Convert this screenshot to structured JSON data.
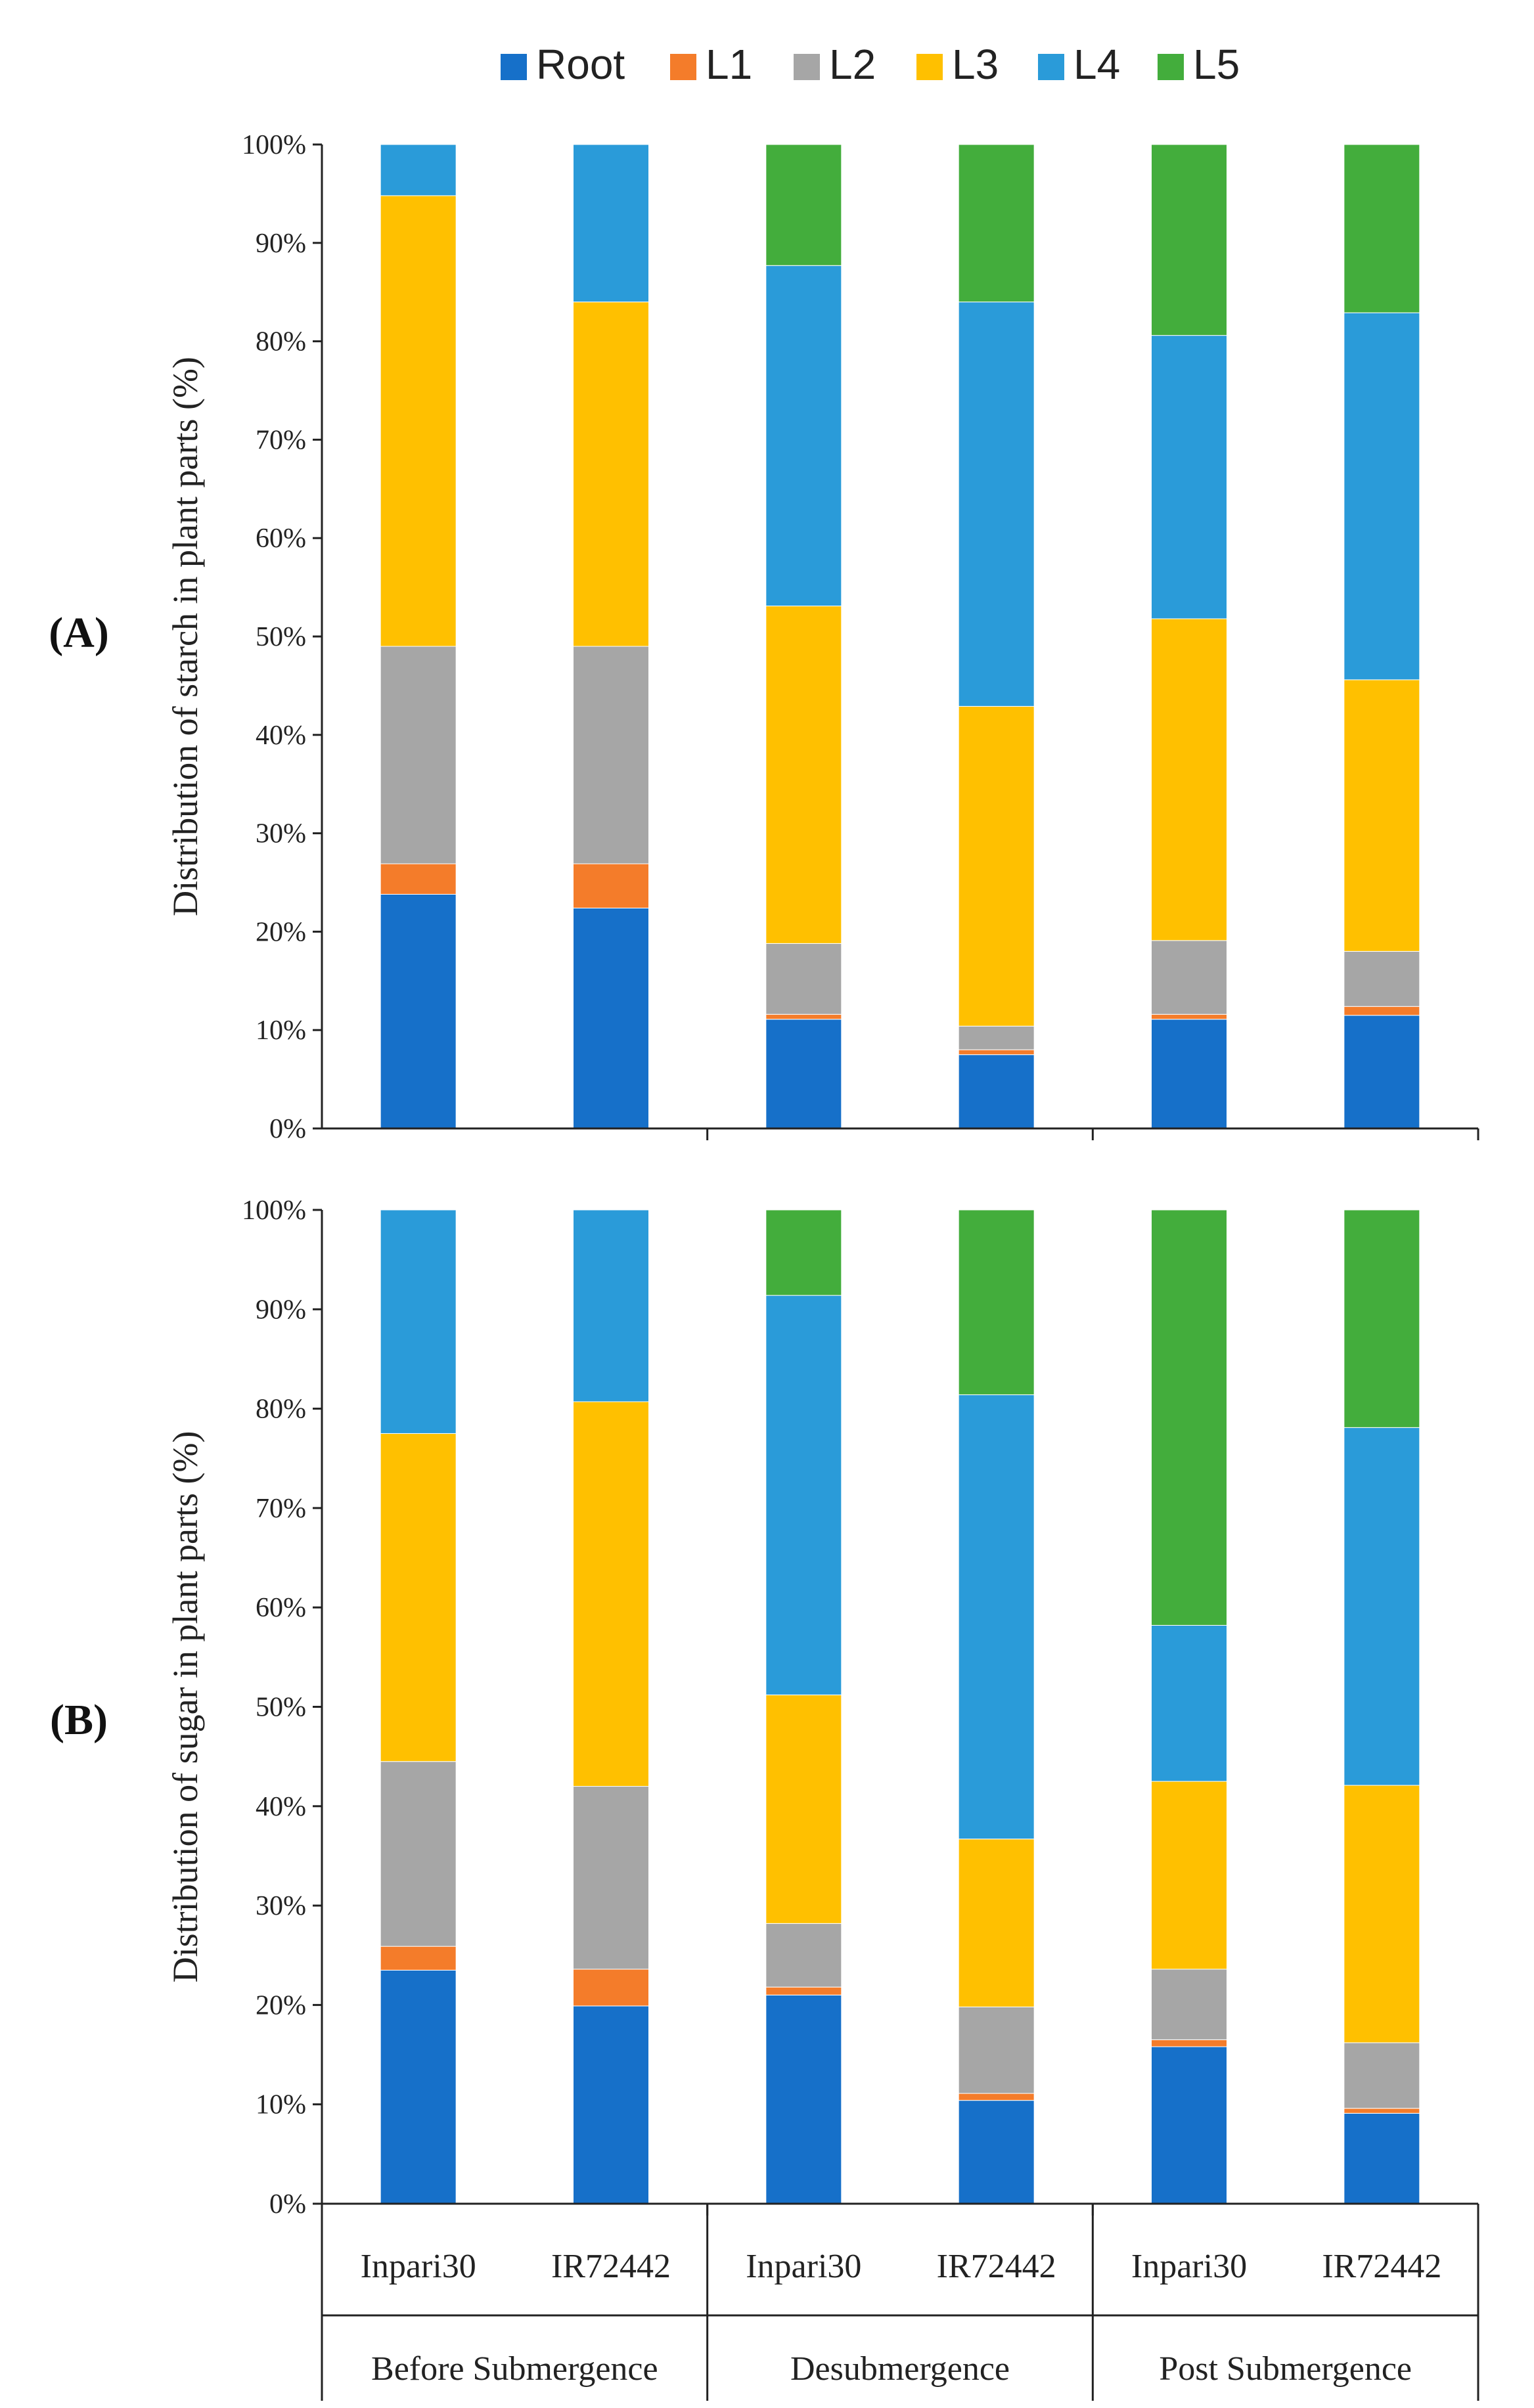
{
  "legend": [
    {
      "name": "Root",
      "color": "#1670c9"
    },
    {
      "name": "L1",
      "color": "#f47c2a"
    },
    {
      "name": "L2",
      "color": "#a6a6a6"
    },
    {
      "name": "L3",
      "color": "#ffc000"
    },
    {
      "name": "L4",
      "color": "#2a9bd9"
    },
    {
      "name": "L5",
      "color": "#43ad3c"
    }
  ],
  "groups": [
    "Before Submergence",
    "Desubmergence",
    "Post Submergence"
  ],
  "chart_data": [
    {
      "type": "bar",
      "stacked": true,
      "panel_label": "(A)",
      "ylabel": "Distribution of starch in plant parts (%)",
      "ylim": [
        0,
        100
      ],
      "yticks": [
        "0%",
        "10%",
        "20%",
        "30%",
        "40%",
        "50%",
        "60%",
        "70%",
        "80%",
        "90%",
        "100%"
      ],
      "categories": [
        "Inpari30",
        "IR72442",
        "Inpari30",
        "IR72442",
        "Inpari30",
        "IR72442"
      ],
      "series": [
        {
          "name": "Root",
          "values": [
            23.8,
            22.4,
            11.1,
            7.5,
            11.1,
            11.5
          ]
        },
        {
          "name": "L1",
          "values": [
            3.1,
            4.5,
            0.5,
            0.5,
            0.5,
            0.9
          ]
        },
        {
          "name": "L2",
          "values": [
            22.1,
            22.1,
            7.2,
            2.4,
            7.5,
            5.6
          ]
        },
        {
          "name": "L3",
          "values": [
            45.8,
            35.0,
            34.3,
            32.5,
            32.7,
            27.6
          ]
        },
        {
          "name": "L4",
          "values": [
            5.2,
            16.0,
            34.6,
            41.1,
            28.8,
            37.3
          ]
        },
        {
          "name": "L5",
          "values": [
            0,
            0,
            12.3,
            16.0,
            19.4,
            17.1
          ]
        }
      ]
    },
    {
      "type": "bar",
      "stacked": true,
      "panel_label": "(B)",
      "ylabel": "Distribution of sugar in plant parts (%)",
      "ylim": [
        0,
        100
      ],
      "yticks": [
        "0%",
        "10%",
        "20%",
        "30%",
        "40%",
        "50%",
        "60%",
        "70%",
        "80%",
        "90%",
        "100%"
      ],
      "categories": [
        "Inpari30",
        "IR72442",
        "Inpari30",
        "IR72442",
        "Inpari30",
        "IR72442"
      ],
      "series": [
        {
          "name": "Root",
          "values": [
            23.5,
            19.9,
            21.0,
            10.4,
            15.8,
            9.1
          ]
        },
        {
          "name": "L1",
          "values": [
            2.4,
            3.7,
            0.8,
            0.7,
            0.7,
            0.5
          ]
        },
        {
          "name": "L2",
          "values": [
            18.6,
            18.4,
            6.4,
            8.7,
            7.1,
            6.6
          ]
        },
        {
          "name": "L3",
          "values": [
            33.0,
            38.7,
            23.0,
            16.9,
            18.9,
            25.9
          ]
        },
        {
          "name": "L4",
          "values": [
            22.5,
            19.3,
            40.2,
            44.7,
            15.7,
            36.0
          ]
        },
        {
          "name": "L5",
          "values": [
            0,
            0,
            8.6,
            18.6,
            41.8,
            21.9
          ]
        }
      ]
    }
  ]
}
